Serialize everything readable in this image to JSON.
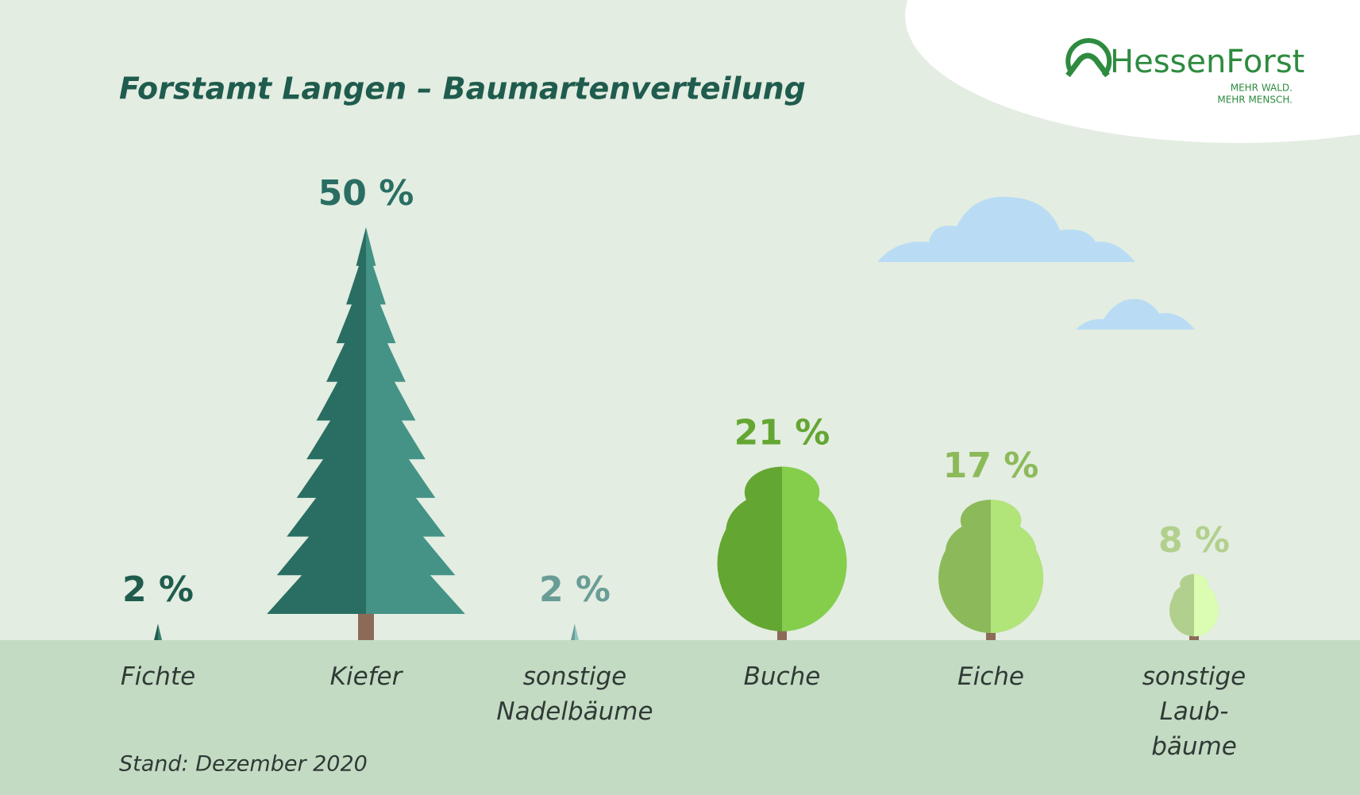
{
  "chart_data": {
    "type": "tree",
    "title": "Forstamt Langen – Baumartenverteilung",
    "footnote": "Stand: Dezember 2020",
    "brand": {
      "name": "HessenForst",
      "tagline": [
        "MEHR WALD.",
        "MEHR MENSCH."
      ]
    },
    "categories": [
      "Fichte",
      "Kiefer",
      "sonstige\nNadelbäume",
      "Buche",
      "Eiche",
      "sonstige\nLaub-\nbäume"
    ],
    "values": [
      2,
      50,
      2,
      21,
      17,
      8
    ],
    "value_labels": [
      "2 %",
      "50 %",
      "2 %",
      "21 %",
      "17 %",
      "8 %"
    ],
    "shapes": [
      "conifer",
      "conifer",
      "conifer",
      "broadleaf",
      "broadleaf",
      "broadleaf"
    ],
    "colors": [
      "#1f5c4e",
      "#2a6e63",
      "#6a9c97",
      "#64a632",
      "#8cba5a",
      "#b2d08d"
    ],
    "ylim": [
      0,
      50
    ]
  }
}
